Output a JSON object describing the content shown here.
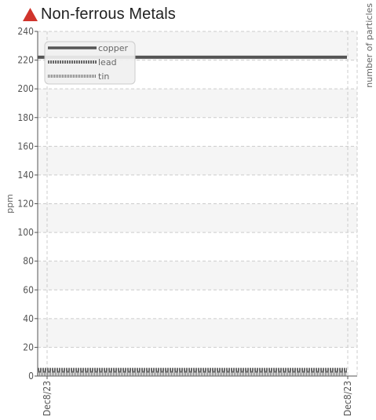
{
  "header": {
    "title": "Non-ferrous Metals",
    "alert_color": "#d0342c"
  },
  "chart_data": {
    "type": "line",
    "x": [
      "Dec8/23",
      "Dec8/23"
    ],
    "xtick_labels": [
      "Dec8/23",
      "Dec8/23"
    ],
    "ylabel": "ppm",
    "ylabel_right": "number of particles",
    "ylim": [
      0,
      240
    ],
    "yticks": [
      0,
      20,
      40,
      60,
      80,
      100,
      120,
      140,
      160,
      180,
      200,
      220,
      240
    ],
    "grid": true,
    "legend_position": "top-left",
    "series": [
      {
        "name": "copper",
        "values": [
          222,
          222
        ],
        "style": "solid",
        "color": "#555555"
      },
      {
        "name": "lead",
        "values": [
          4,
          4
        ],
        "style": "dashed",
        "color": "#666666"
      },
      {
        "name": "tin",
        "values": [
          2,
          2
        ],
        "style": "dotted",
        "color": "#777777"
      }
    ]
  }
}
